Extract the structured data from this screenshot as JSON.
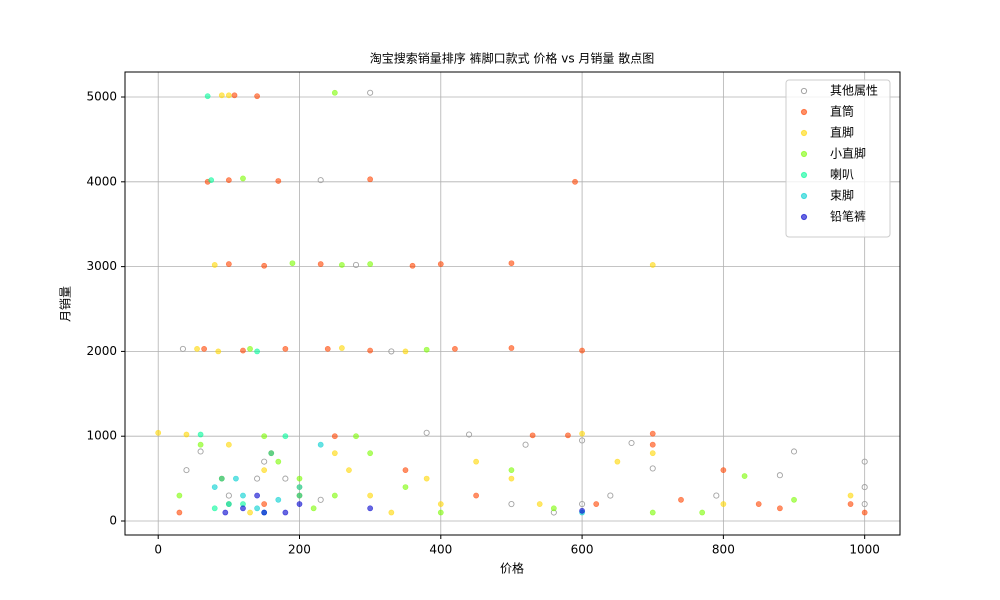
{
  "chart_data": {
    "type": "scatter",
    "title": "淘宝搜索销量排序 裤脚口款式 价格 vs 月销量 散点图",
    "x_label": "价格",
    "y_label": "月销量",
    "xlim": [
      -47,
      1050
    ],
    "xticks": [
      0,
      200,
      400,
      600,
      800,
      1000
    ],
    "ylim": [
      -165,
      5295
    ],
    "yticks": [
      0,
      1000,
      2000,
      3000,
      4000,
      5000
    ],
    "grid": true,
    "legend": "upper right",
    "series": [
      {
        "name": "其他属性",
        "color": "#999999",
        "marker": "hollow",
        "x": [
          35,
          40,
          60,
          100,
          150,
          180,
          230,
          280,
          330,
          380,
          440,
          500,
          520,
          560,
          600,
          640,
          670,
          700,
          790,
          880,
          900,
          1000,
          1000,
          1000,
          300,
          230,
          600,
          140
        ],
        "values": [
          2030,
          600,
          820,
          300,
          700,
          500,
          4020,
          3020,
          2000,
          1040,
          1020,
          200,
          900,
          100,
          950,
          300,
          920,
          620,
          300,
          540,
          820,
          700,
          400,
          200,
          5050,
          250,
          200,
          500
        ]
      },
      {
        "name": "直筒",
        "color": "#ff4500",
        "x": [
          108,
          140,
          70,
          100,
          170,
          590,
          100,
          150,
          230,
          300,
          360,
          400,
          500,
          600,
          65,
          120,
          180,
          240,
          300,
          420,
          500,
          530,
          580,
          700,
          740,
          800,
          850,
          1000,
          980,
          30,
          90,
          160,
          200,
          250,
          350,
          450,
          620,
          700,
          880,
          150
        ],
        "values": [
          5020,
          5010,
          4000,
          4020,
          4010,
          4000,
          3030,
          3010,
          3030,
          4030,
          3010,
          3030,
          3040,
          2010,
          2030,
          2010,
          2030,
          2030,
          2010,
          2030,
          2040,
          1010,
          1010,
          1030,
          250,
          600,
          200,
          100,
          200,
          100,
          500,
          800,
          300,
          1000,
          600,
          300,
          200,
          900,
          150,
          200
        ]
      },
      {
        "name": "直脚",
        "color": "#ffd700",
        "x": [
          90,
          100,
          80,
          700,
          55,
          85,
          260,
          350,
          40,
          0,
          100,
          150,
          200,
          250,
          300,
          400,
          450,
          500,
          600,
          700,
          800,
          980,
          130,
          270,
          330,
          380,
          540,
          650
        ],
        "values": [
          5020,
          5020,
          3020,
          3020,
          2030,
          2000,
          2040,
          2000,
          1020,
          1040,
          900,
          600,
          400,
          800,
          300,
          200,
          700,
          500,
          1030,
          800,
          200,
          300,
          100,
          600,
          100,
          500,
          200,
          700
        ]
      },
      {
        "name": "小直脚",
        "color": "#7cfc00",
        "x": [
          250,
          120,
          190,
          260,
          300,
          380,
          130,
          30,
          60,
          100,
          150,
          200,
          250,
          300,
          350,
          400,
          500,
          560,
          700,
          770,
          830,
          900,
          170,
          220,
          280
        ],
        "values": [
          5050,
          4040,
          3040,
          3020,
          3030,
          2020,
          2030,
          300,
          900,
          200,
          1000,
          500,
          300,
          800,
          400,
          100,
          600,
          150,
          100,
          100,
          530,
          250,
          700,
          150,
          1000
        ]
      },
      {
        "name": "喇叭",
        "color": "#00fa9a",
        "x": [
          70,
          75,
          140,
          60,
          90,
          120,
          160,
          200,
          80,
          180
        ],
        "values": [
          5010,
          4020,
          2000,
          1020,
          500,
          200,
          800,
          300,
          150,
          1000
        ]
      },
      {
        "name": "束脚",
        "color": "#00ced1",
        "x": [
          80,
          100,
          120,
          150,
          170,
          200,
          230,
          140,
          110,
          600
        ],
        "values": [
          400,
          200,
          300,
          100,
          250,
          400,
          900,
          150,
          500,
          100
        ]
      },
      {
        "name": "铅笔裤",
        "color": "#0000cd",
        "x": [
          95,
          120,
          150,
          200,
          300,
          600,
          140,
          180
        ],
        "values": [
          100,
          150,
          100,
          200,
          150,
          120,
          300,
          100
        ]
      }
    ]
  }
}
